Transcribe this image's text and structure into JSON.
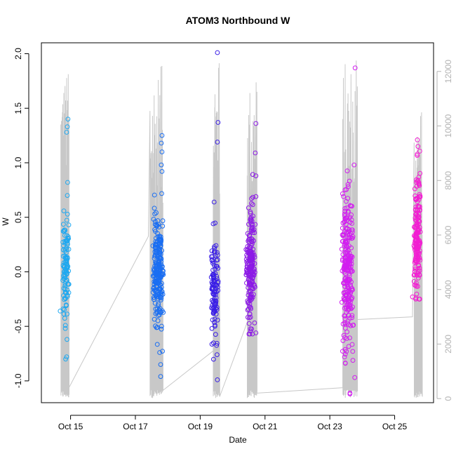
{
  "chart_data": {
    "type": "scatter",
    "title": "ATOM3 Northbound W",
    "xlabel": "Date",
    "ylabel": "W",
    "x_ticks": [
      "Oct 15",
      "Oct 17",
      "Oct 19",
      "Oct 21",
      "Oct 23",
      "Oct 25"
    ],
    "x_tick_days": [
      15,
      17,
      19,
      21,
      23,
      25
    ],
    "xlim_days": [
      14.1,
      26.2
    ],
    "ylim": [
      -1.2,
      2.1
    ],
    "y_ticks": [
      "-1.0",
      "-0.5",
      "0.0",
      "0.5",
      "1.0",
      "1.5",
      "2.0"
    ],
    "y_tick_values": [
      -1.0,
      -0.5,
      0.0,
      0.5,
      1.0,
      1.5,
      2.0
    ],
    "y2_ticks": [
      "0",
      "2000",
      "4000",
      "6000",
      "8000",
      "10000",
      "12000"
    ],
    "y2_tick_values": [
      0,
      2000,
      4000,
      6000,
      8000,
      10000,
      12000
    ],
    "y2lim": [
      -150,
      13050
    ],
    "grid": false,
    "legend": "none",
    "colors": {
      "cluster1": "#1fa8f0",
      "cluster2": "#1a6ef2",
      "cluster3": "#3a1ee6",
      "cluster4": "#8c1ae6",
      "cluster5": "#d21ef0",
      "cluster6": "#f21ed2",
      "line": "#c8c8c8",
      "axis": "#000000",
      "axis2": "#b3b3b3"
    },
    "series": [
      {
        "color_key": "cluster1",
        "center_day": 14.85,
        "spread_days": 0.12,
        "count": 110,
        "w_range": [
          -0.8,
          1.42
        ],
        "w_core": [
          -0.45,
          0.5
        ],
        "outliers": [
          {
            "day": 14.92,
            "w": 1.4
          },
          {
            "day": 14.9,
            "w": 1.33
          },
          {
            "day": 14.88,
            "w": 1.28
          },
          {
            "day": 14.91,
            "w": 0.82
          },
          {
            "day": 14.9,
            "w": 0.7
          },
          {
            "day": 14.88,
            "w": -0.78
          },
          {
            "day": 14.68,
            "w": -0.36
          },
          {
            "day": 14.89,
            "w": -0.62
          }
        ]
      },
      {
        "color_key": "cluster2",
        "center_day": 17.7,
        "spread_days": 0.18,
        "count": 240,
        "w_range": [
          -0.97,
          1.25
        ],
        "w_core": [
          -0.5,
          0.52
        ],
        "outliers": [
          {
            "day": 17.82,
            "w": 1.25
          },
          {
            "day": 17.8,
            "w": 1.18
          },
          {
            "day": 17.82,
            "w": 1.1
          },
          {
            "day": 17.8,
            "w": 0.98
          },
          {
            "day": 17.82,
            "w": 0.92
          },
          {
            "day": 17.78,
            "w": -0.96
          },
          {
            "day": 17.78,
            "w": -0.85
          },
          {
            "day": 17.75,
            "w": -0.74
          }
        ]
      },
      {
        "color_key": "cluster3",
        "center_day": 19.45,
        "spread_days": 0.12,
        "count": 110,
        "w_range": [
          -1.0,
          2.02
        ],
        "w_core": [
          -0.6,
          0.35
        ],
        "outliers": [
          {
            "day": 19.53,
            "w": 2.01
          },
          {
            "day": 19.55,
            "w": 1.37
          },
          {
            "day": 19.53,
            "w": 1.19
          },
          {
            "day": 19.43,
            "w": 0.64
          },
          {
            "day": 19.53,
            "w": -0.99
          },
          {
            "day": 19.52,
            "w": -0.76
          }
        ]
      },
      {
        "color_key": "cluster4",
        "center_day": 20.55,
        "spread_days": 0.16,
        "count": 200,
        "w_range": [
          -0.57,
          1.37
        ],
        "w_core": [
          -0.5,
          0.58
        ],
        "outliers": [
          {
            "day": 20.72,
            "w": 1.36
          },
          {
            "day": 20.7,
            "w": 1.09
          },
          {
            "day": 20.72,
            "w": 0.88
          },
          {
            "day": 20.72,
            "w": 0.69
          },
          {
            "day": 20.72,
            "w": -0.56
          }
        ]
      },
      {
        "color_key": "cluster5",
        "center_day": 23.55,
        "spread_days": 0.2,
        "count": 260,
        "w_range": [
          -1.12,
          1.88
        ],
        "w_core": [
          -0.75,
          0.7
        ],
        "outliers": [
          {
            "day": 23.78,
            "w": 1.87
          },
          {
            "day": 23.75,
            "w": 0.98
          },
          {
            "day": 23.62,
            "w": -1.12
          },
          {
            "day": 23.77,
            "w": -0.97
          },
          {
            "day": 23.42,
            "w": 0.69
          }
        ]
      },
      {
        "color_key": "cluster6",
        "center_day": 25.7,
        "spread_days": 0.12,
        "count": 180,
        "w_range": [
          -0.25,
          1.22
        ],
        "w_core": [
          -0.2,
          0.9
        ],
        "outliers": [
          {
            "day": 25.7,
            "w": 1.21
          },
          {
            "day": 25.72,
            "w": 1.15
          },
          {
            "day": 25.7,
            "w": 1.08
          },
          {
            "day": 25.55,
            "w": -0.23
          }
        ]
      }
    ],
    "secondary_line": {
      "axis": "right",
      "color_key": "line",
      "bursts": [
        {
          "start_day": 14.7,
          "end_day": 14.95,
          "max": 11900,
          "min": 20
        },
        {
          "start_day": 17.45,
          "end_day": 17.85,
          "max": 12200,
          "min": 20
        },
        {
          "start_day": 19.4,
          "end_day": 19.6,
          "max": 12300,
          "min": 20
        },
        {
          "start_day": 20.45,
          "end_day": 20.75,
          "max": 11600,
          "min": 20
        },
        {
          "start_day": 23.4,
          "end_day": 23.85,
          "max": 12400,
          "min": 20
        },
        {
          "start_day": 25.6,
          "end_day": 25.85,
          "max": 10500,
          "min": 20
        }
      ],
      "connectors": [
        {
          "from_day": 14.95,
          "from": 400,
          "to_day": 17.4,
          "to": 5950
        },
        {
          "from_day": 17.85,
          "from": 300,
          "to_day": 19.4,
          "to": 1750
        },
        {
          "from_day": 19.6,
          "from": 70,
          "to_day": 20.45,
          "to": 2800
        },
        {
          "from_day": 20.75,
          "from": 200,
          "to_day": 23.4,
          "to": 400
        },
        {
          "from_day": 23.85,
          "from": 2900,
          "to_day": 25.55,
          "to": 3000
        }
      ]
    }
  }
}
